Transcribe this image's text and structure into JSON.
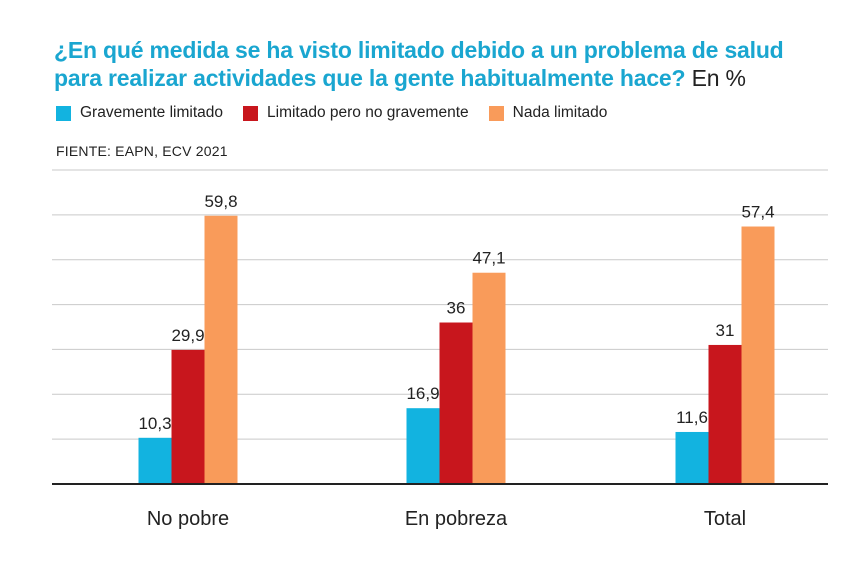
{
  "header": {
    "title": "¿En qué medida se ha visto limitado debido a un problema de salud para realizar actividades que la gente habitualmente hace?",
    "unit": "En %",
    "source": "FIENTE: EAPN, ECV 2021"
  },
  "colors": {
    "title": "#1aa6d0",
    "series": [
      "#12b3e0",
      "#c8161d",
      "#f99b5a"
    ],
    "grid": "#c9c9c9",
    "axis": "#222222"
  },
  "chart_data": {
    "type": "bar",
    "title": "¿En qué medida se ha visto limitado debido a un problema de salud para realizar actividades que la gente habitualmente hace? En %",
    "categories": [
      "No pobre",
      "En pobreza",
      "Total"
    ],
    "series": [
      {
        "name": "Gravemente limitado",
        "values": [
          10.3,
          16.9,
          11.6
        ],
        "labels": [
          "10,3",
          "16,9",
          "11,6"
        ]
      },
      {
        "name": "Limitado pero no gravemente",
        "values": [
          29.9,
          36,
          31
        ],
        "labels": [
          "29,9",
          "36",
          "31"
        ]
      },
      {
        "name": "Nada limitado",
        "values": [
          59.8,
          47.1,
          57.4
        ],
        "labels": [
          "59,8",
          "47,1",
          "57,4"
        ]
      }
    ],
    "ylim": [
      0,
      70
    ],
    "grid": true,
    "legend": "top-left",
    "xlabel": "",
    "ylabel": ""
  }
}
